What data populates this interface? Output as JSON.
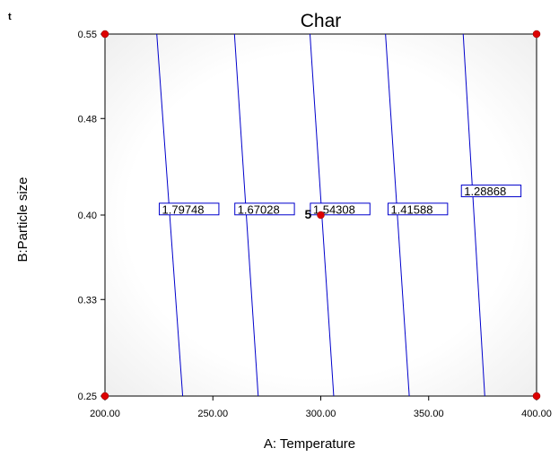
{
  "chart_data": {
    "type": "contour",
    "title": "Char",
    "corner_label": "t",
    "xlabel": "A: Temperature",
    "ylabel": "B:Particle size",
    "xlim": [
      200,
      400
    ],
    "ylim": [
      0.25,
      0.55
    ],
    "x_ticks": [
      200,
      250,
      300,
      350,
      400
    ],
    "x_tick_labels": [
      "200.00",
      "250.00",
      "300.00",
      "350.00",
      "400.00"
    ],
    "y_ticks": [
      0.25,
      0.33,
      0.4,
      0.48,
      0.55
    ],
    "y_tick_labels": [
      "0.25",
      "0.33",
      "0.40",
      "0.48",
      "0.55"
    ],
    "contours": [
      {
        "label": "1.79748",
        "x_top": 224,
        "x_bottom": 236,
        "label_x": 226,
        "label_y": 0.405
      },
      {
        "label": "1.67028",
        "x_top": 260,
        "x_bottom": 271,
        "label_x": 261,
        "label_y": 0.405
      },
      {
        "label": "1.54308",
        "x_top": 295,
        "x_bottom": 306,
        "label_x": 296,
        "label_y": 0.405
      },
      {
        "label": "1.41588",
        "x_top": 330,
        "x_bottom": 341,
        "label_x": 332,
        "label_y": 0.405
      },
      {
        "label": "1.28868",
        "x_top": 366,
        "x_bottom": 376,
        "label_x": 366,
        "label_y": 0.42
      }
    ],
    "design_points": [
      {
        "x": 200,
        "y": 0.55
      },
      {
        "x": 400,
        "y": 0.55
      },
      {
        "x": 200,
        "y": 0.25
      },
      {
        "x": 400,
        "y": 0.25
      },
      {
        "x": 300,
        "y": 0.4
      }
    ],
    "center_point_label": "5",
    "line_color": "#0000cc",
    "point_color": "#dd0000"
  }
}
